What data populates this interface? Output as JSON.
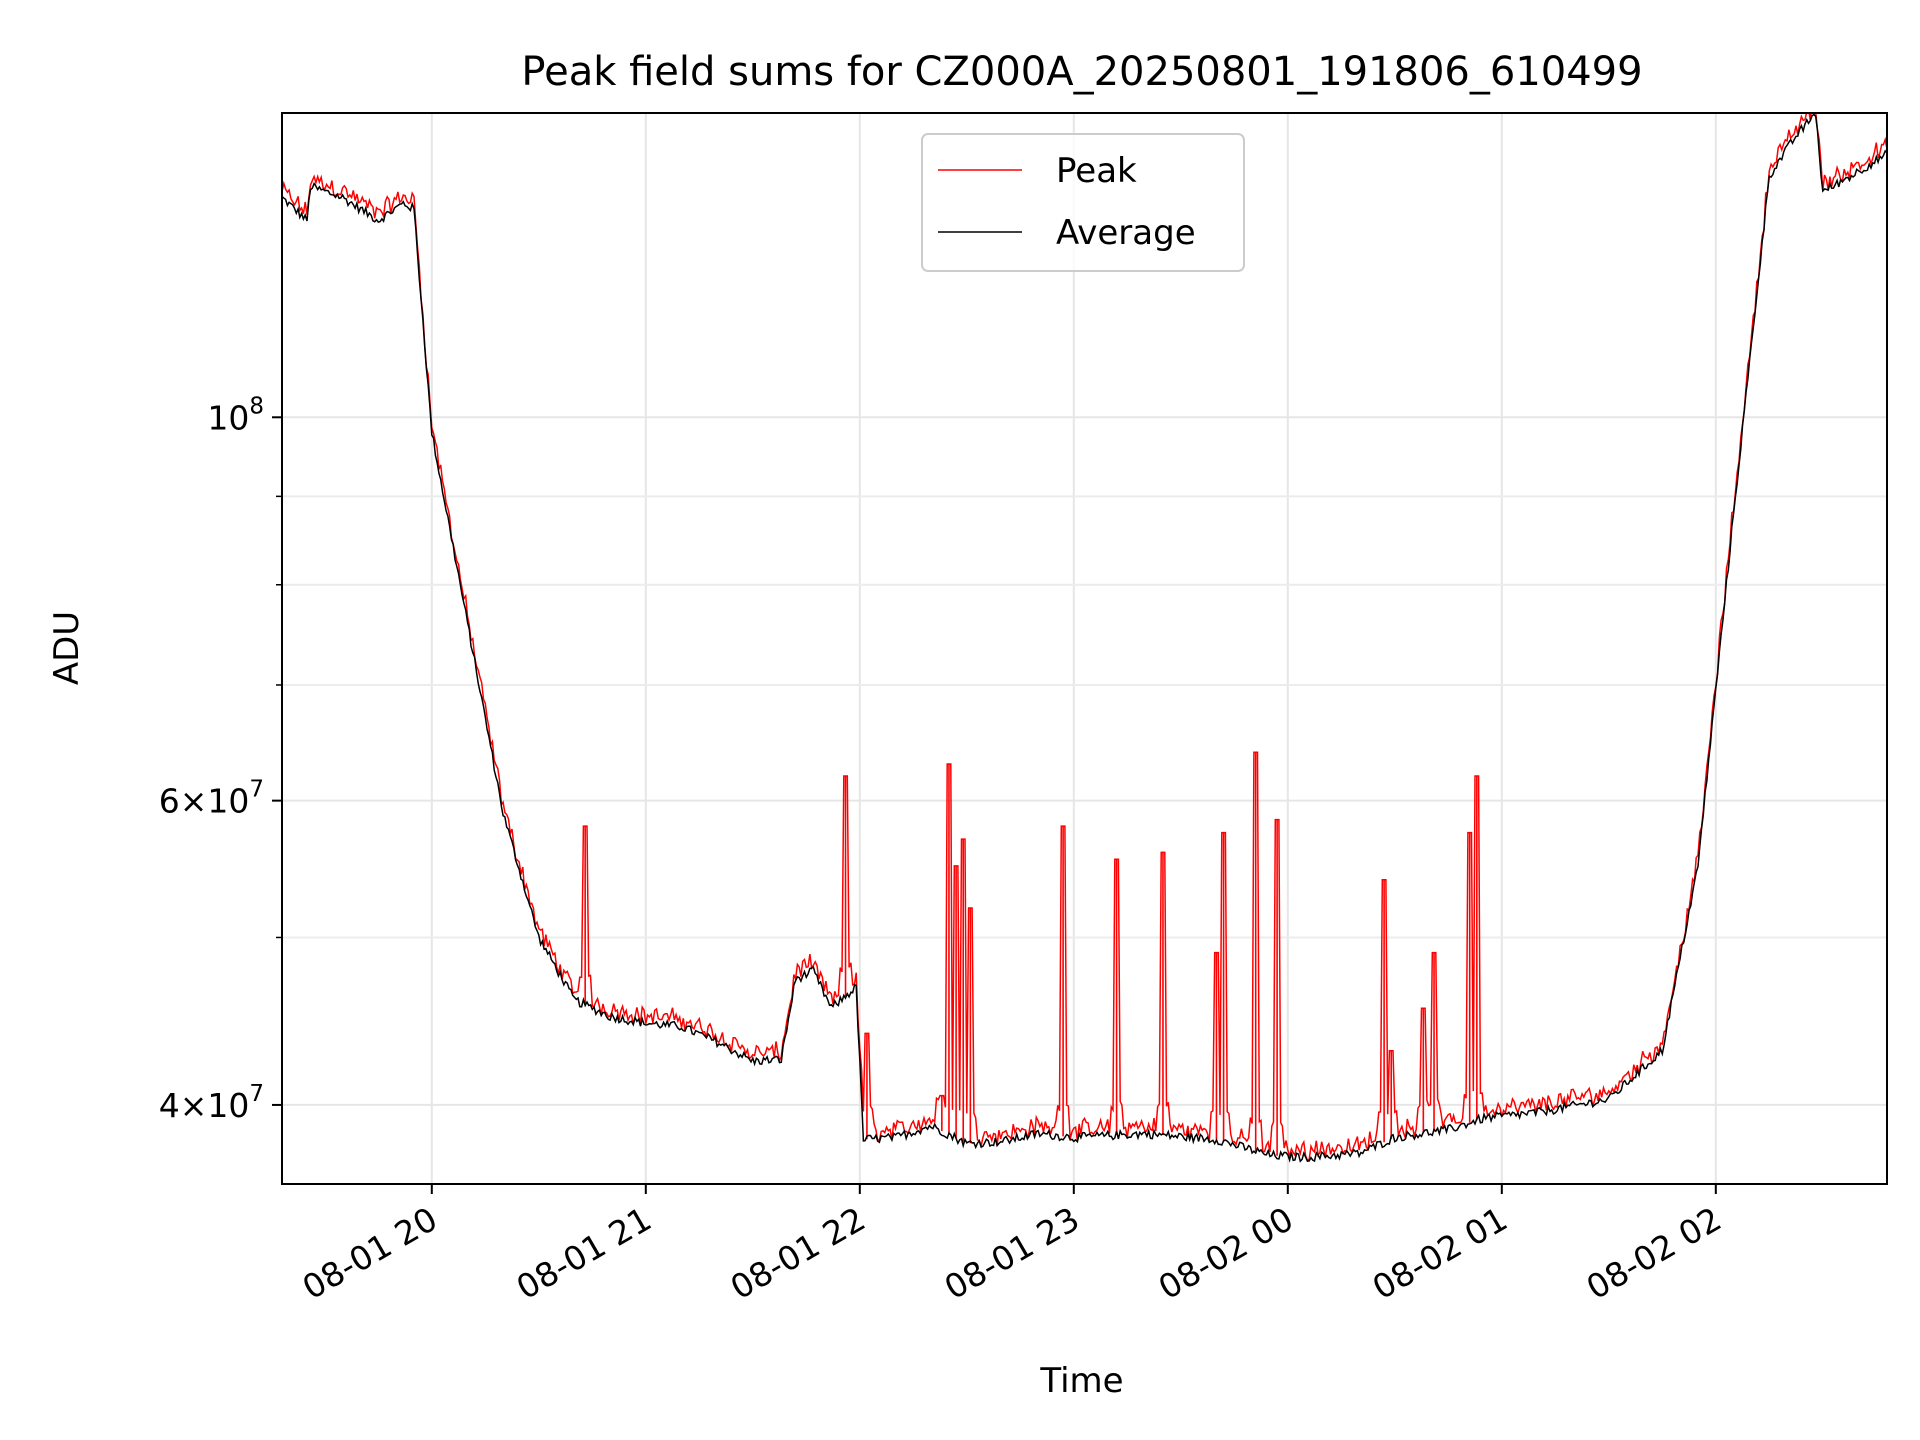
{
  "chart_data": {
    "type": "line",
    "title": "Peak field sums for CZ000A_20250801_191806_610499",
    "xlabel": "Time",
    "ylabel": "ADU",
    "yscale": "log",
    "ylim": [
      36000000,
      150000000
    ],
    "xlim": [
      "2025-08-01 19:18",
      "2025-08-02 02:48"
    ],
    "x_ticks": [
      "08-01 20",
      "08-01 21",
      "08-01 22",
      "08-01 23",
      "08-02 00",
      "08-02 01",
      "08-02 02"
    ],
    "y_ticks": [
      {
        "value": 40000000,
        "base": "4",
        "exp": "7"
      },
      {
        "value": 60000000,
        "base": "6",
        "exp": "7"
      },
      {
        "value": 100000000,
        "base": "",
        "exp": "8"
      }
    ],
    "grid": true,
    "legend_position": "top-center",
    "colors": {
      "peak": "#ff0000",
      "average": "#000000"
    },
    "series": [
      {
        "name": "Average",
        "color": "#000000",
        "points": [
          [
            "2025-08-01 19:18",
            134000000
          ],
          [
            "2025-08-01 19:25",
            130000000
          ],
          [
            "2025-08-01 19:26",
            136000000
          ],
          [
            "2025-08-01 19:35",
            134000000
          ],
          [
            "2025-08-01 19:45",
            130000000
          ],
          [
            "2025-08-01 19:52",
            133000000
          ],
          [
            "2025-08-01 19:55",
            132000000
          ],
          [
            "2025-08-01 20:00",
            98000000
          ],
          [
            "2025-08-01 20:10",
            76000000
          ],
          [
            "2025-08-01 20:20",
            59000000
          ],
          [
            "2025-08-01 20:30",
            50000000
          ],
          [
            "2025-08-01 20:40",
            46000000
          ],
          [
            "2025-08-01 20:50",
            45000000
          ],
          [
            "2025-08-01 21:00",
            44600000
          ],
          [
            "2025-08-01 21:10",
            44400000
          ],
          [
            "2025-08-01 21:20",
            43500000
          ],
          [
            "2025-08-01 21:30",
            42400000
          ],
          [
            "2025-08-01 21:38",
            42500000
          ],
          [
            "2025-08-01 21:42",
            47300000
          ],
          [
            "2025-08-01 21:47",
            47800000
          ],
          [
            "2025-08-01 21:52",
            45500000
          ],
          [
            "2025-08-01 21:59",
            46800000
          ],
          [
            "2025-08-01 22:01",
            38200000
          ],
          [
            "2025-08-01 22:10",
            38300000
          ],
          [
            "2025-08-01 22:20",
            38900000
          ],
          [
            "2025-08-01 22:30",
            38000000
          ],
          [
            "2025-08-01 22:40",
            38100000
          ],
          [
            "2025-08-01 22:50",
            38500000
          ],
          [
            "2025-08-01 23:00",
            38300000
          ],
          [
            "2025-08-01 23:20",
            38500000
          ],
          [
            "2025-08-01 23:40",
            38200000
          ],
          [
            "2025-08-01 23:55",
            37400000
          ],
          [
            "2025-08-02 00:05",
            37300000
          ],
          [
            "2025-08-02 00:20",
            37500000
          ],
          [
            "2025-08-02 00:30",
            38300000
          ],
          [
            "2025-08-02 00:45",
            38700000
          ],
          [
            "2025-08-02 00:55",
            39300000
          ],
          [
            "2025-08-02 01:10",
            39600000
          ],
          [
            "2025-08-02 01:30",
            40300000
          ],
          [
            "2025-08-02 01:45",
            43000000
          ],
          [
            "2025-08-02 01:55",
            55000000
          ],
          [
            "2025-08-02 02:05",
            88000000
          ],
          [
            "2025-08-02 02:15",
            138000000
          ],
          [
            "2025-08-02 02:22",
            145000000
          ],
          [
            "2025-08-02 02:28",
            150000000
          ],
          [
            "2025-08-02 02:30",
            135000000
          ],
          [
            "2025-08-02 02:38",
            138000000
          ],
          [
            "2025-08-02 02:48",
            142000000
          ]
        ]
      },
      {
        "name": "Peak",
        "color": "#ff0000",
        "spikes": [
          [
            "2025-08-01 20:43",
            58000000
          ],
          [
            "2025-08-01 21:56",
            62000000
          ],
          [
            "2025-08-01 22:02",
            44000000
          ],
          [
            "2025-08-01 22:23",
            40500000
          ],
          [
            "2025-08-01 22:25",
            63000000
          ],
          [
            "2025-08-01 22:27",
            55000000
          ],
          [
            "2025-08-01 22:29",
            57000000
          ],
          [
            "2025-08-01 22:31",
            52000000
          ],
          [
            "2025-08-01 22:57",
            58000000
          ],
          [
            "2025-08-01 23:12",
            55500000
          ],
          [
            "2025-08-01 23:25",
            56000000
          ],
          [
            "2025-08-01 23:40",
            49000000
          ],
          [
            "2025-08-01 23:42",
            57500000
          ],
          [
            "2025-08-01 23:51",
            64000000
          ],
          [
            "2025-08-01 23:57",
            58500000
          ],
          [
            "2025-08-02 00:27",
            54000000
          ],
          [
            "2025-08-02 00:29",
            43000000
          ],
          [
            "2025-08-02 00:38",
            45500000
          ],
          [
            "2025-08-02 00:41",
            49000000
          ],
          [
            "2025-08-02 00:51",
            57500000
          ],
          [
            "2025-08-02 00:53",
            62000000
          ]
        ]
      }
    ]
  }
}
